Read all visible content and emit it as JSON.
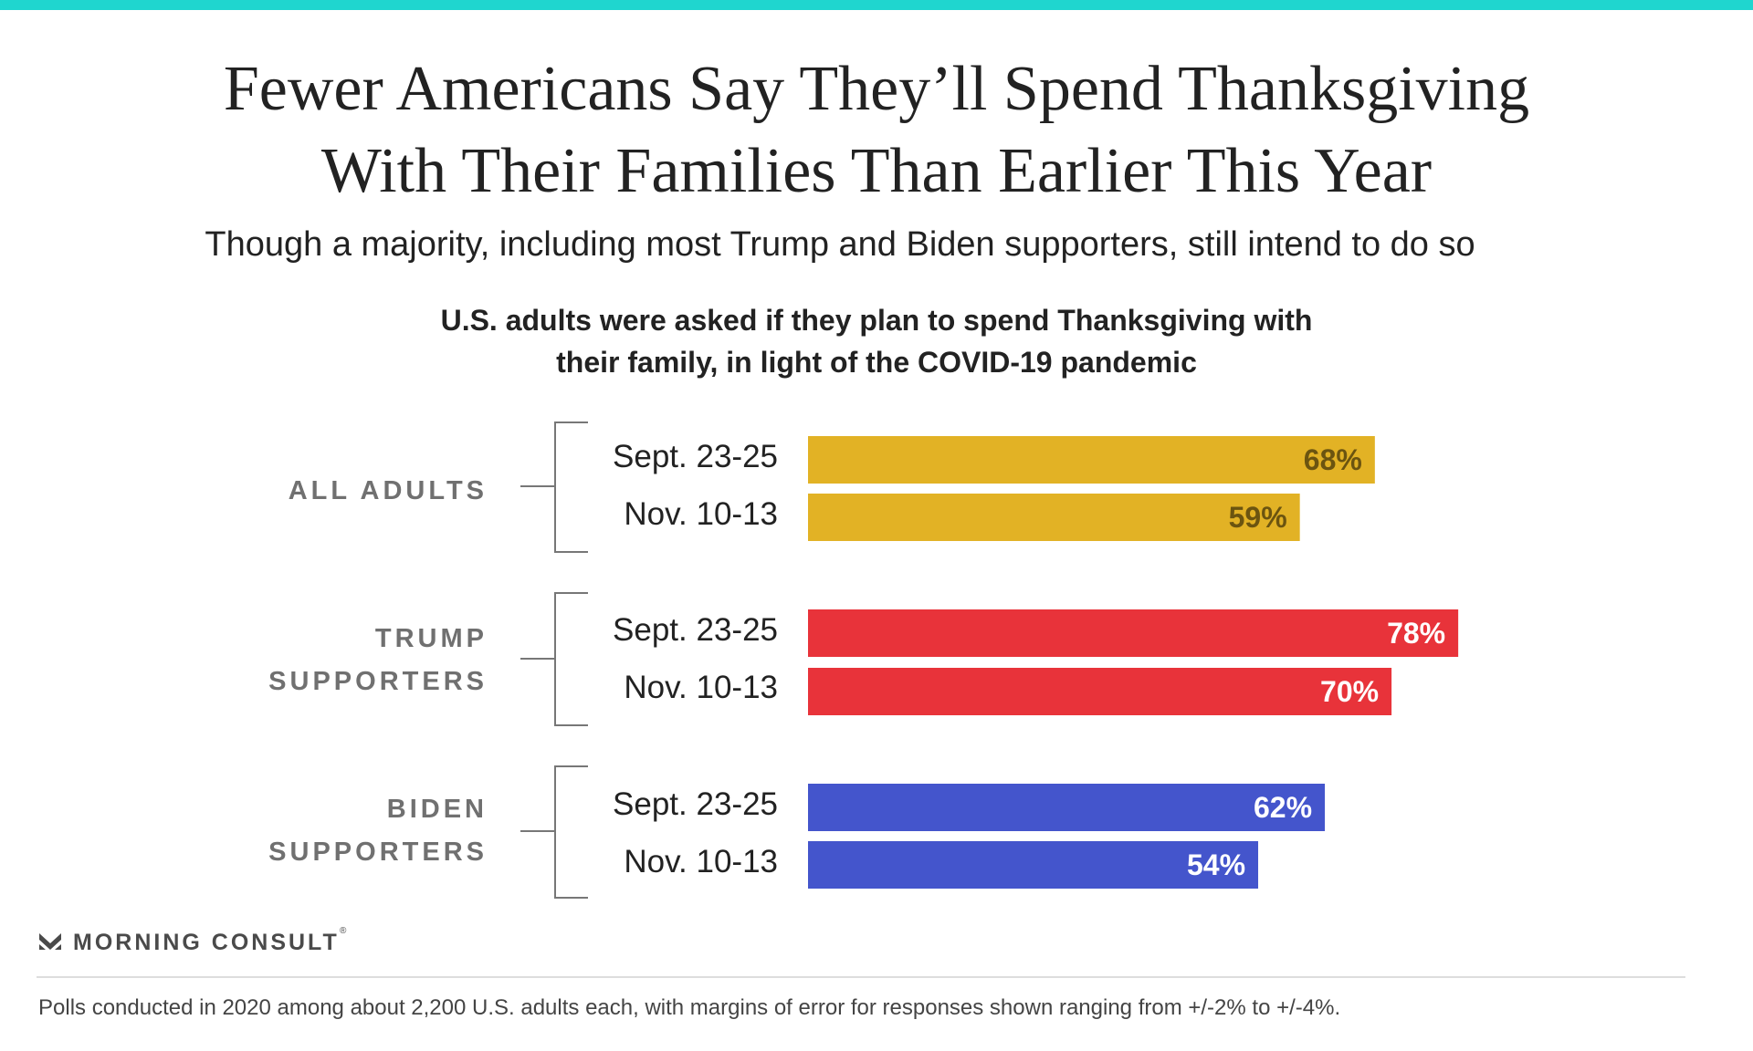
{
  "header": {
    "title_line1": "Fewer Americans Say They’ll Spend Thanksgiving",
    "title_line2": "With Their Families Than Earlier This Year",
    "subtitle": "Though a majority, including most Trump and Biden supporters, still intend to do so",
    "question_line1": "U.S. adults were asked if they plan to spend Thanksgiving with",
    "question_line2": "their family, in light of the COVID-19 pandemic"
  },
  "chart_data": {
    "type": "bar",
    "orientation": "horizontal",
    "title": "U.S. adults were asked if they plan to spend Thanksgiving with their family, in light of the COVID-19 pandemic",
    "unit": "%",
    "xlim": [
      0,
      100
    ],
    "grid": false,
    "groups": [
      {
        "label_lines": [
          "ALL ADULTS"
        ],
        "color": "#e2b225",
        "label_color": "#6b5410",
        "bars": [
          {
            "period": "Sept. 23-25",
            "value": 68,
            "label": "68%"
          },
          {
            "period": "Nov. 10-13",
            "value": 59,
            "label": "59%"
          }
        ]
      },
      {
        "label_lines": [
          "TRUMP",
          "SUPPORTERS"
        ],
        "color": "#e8333a",
        "label_color": "#ffffff",
        "bars": [
          {
            "period": "Sept. 23-25",
            "value": 78,
            "label": "78%"
          },
          {
            "period": "Nov. 10-13",
            "value": 70,
            "label": "70%"
          }
        ]
      },
      {
        "label_lines": [
          "BIDEN",
          "SUPPORTERS"
        ],
        "color": "#4455cc",
        "label_color": "#ffffff",
        "bars": [
          {
            "period": "Sept. 23-25",
            "value": 62,
            "label": "62%"
          },
          {
            "period": "Nov. 10-13",
            "value": 54,
            "label": "54%"
          }
        ]
      }
    ]
  },
  "footer": {
    "logo_text": "MORNING CONSULT",
    "logo_mark": "®",
    "note": "Polls conducted in 2020 among about 2,200 U.S. adults each, with margins of error for responses shown ranging from +/-2% to +/-4%."
  },
  "colors": {
    "accent_bar": "#1fd6cf"
  }
}
